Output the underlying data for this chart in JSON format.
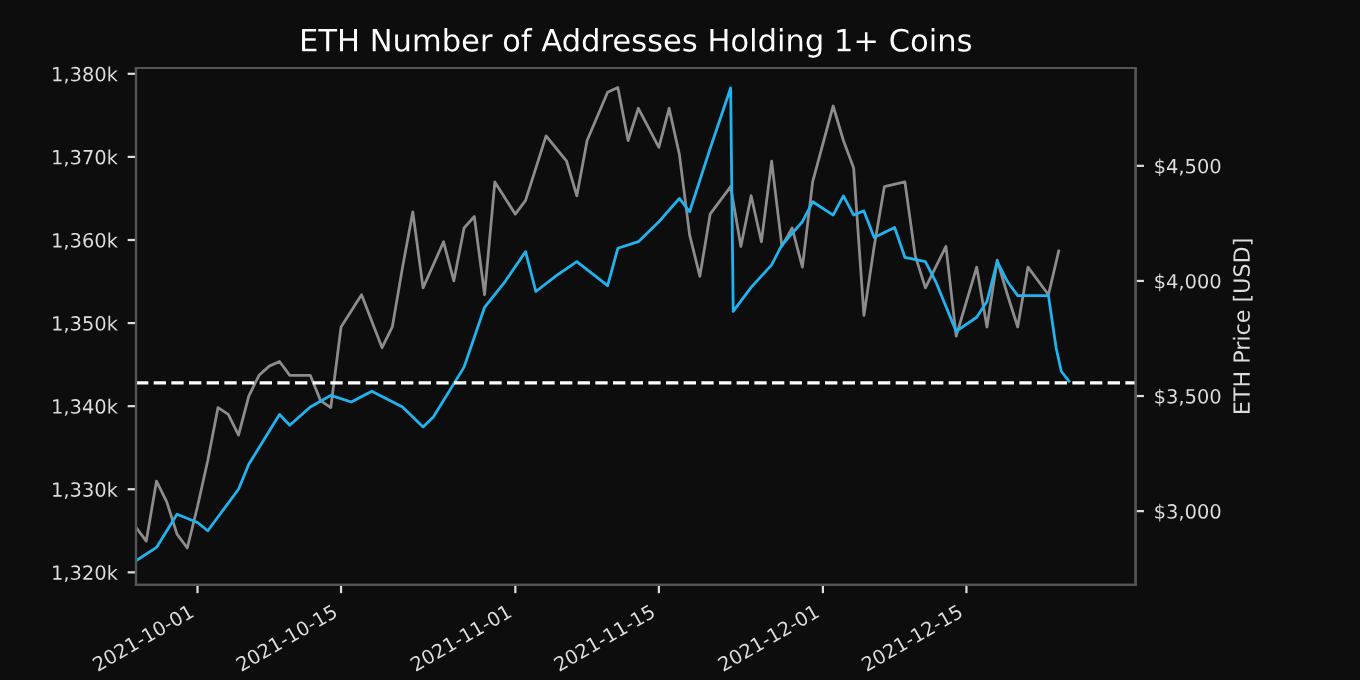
{
  "chart_data": {
    "type": "line",
    "title": "ETH Number of Addresses Holding 1+ Coins",
    "y2label": "ETH Price [USD]",
    "xlim": [
      "2021-09-25T00:00",
      "2021-12-31T12:00"
    ],
    "xticks": [
      "2021-10-01",
      "2021-10-15",
      "2021-11-01",
      "2021-11-15",
      "2021-12-01",
      "2021-12-15"
    ],
    "ylim": [
      1318500,
      1380700
    ],
    "yticks": [
      {
        "value": 1320000,
        "label": "1,320k"
      },
      {
        "value": 1330000,
        "label": "1,330k"
      },
      {
        "value": 1340000,
        "label": "1,340k"
      },
      {
        "value": 1350000,
        "label": "1,350k"
      },
      {
        "value": 1360000,
        "label": "1,360k"
      },
      {
        "value": 1370000,
        "label": "1,370k"
      },
      {
        "value": 1380000,
        "label": "1,380k"
      }
    ],
    "y2lim": [
      2680,
      4925
    ],
    "y2ticks": [
      {
        "value": 3000,
        "label": "$3,000"
      },
      {
        "value": 3500,
        "label": "$3,500"
      },
      {
        "value": 4000,
        "label": "$4,000"
      },
      {
        "value": 4500,
        "label": "$4,500"
      }
    ],
    "grid": false,
    "ref_lines": [
      {
        "axis": "y",
        "value": 1342800,
        "color": "#ffffff",
        "line_style": "dashed"
      }
    ],
    "series": [
      {
        "axis": "y2",
        "color": "#8c8c8c",
        "x": [
          "2021-09-25",
          "2021-09-26",
          "2021-09-27",
          "2021-09-28",
          "2021-09-29",
          "2021-09-30",
          "2021-10-01",
          "2021-10-02",
          "2021-10-03",
          "2021-10-04",
          "2021-10-05",
          "2021-10-06",
          "2021-10-07",
          "2021-10-08",
          "2021-10-09",
          "2021-10-10",
          "2021-10-12",
          "2021-10-13",
          "2021-10-14",
          "2021-10-15",
          "2021-10-17",
          "2021-10-19",
          "2021-10-20",
          "2021-10-21",
          "2021-10-22",
          "2021-10-23",
          "2021-10-25",
          "2021-10-26",
          "2021-10-27",
          "2021-10-28",
          "2021-10-29",
          "2021-10-30",
          "2021-11-01",
          "2021-11-02",
          "2021-11-04",
          "2021-11-06",
          "2021-11-07",
          "2021-11-08",
          "2021-11-10",
          "2021-11-11",
          "2021-11-12",
          "2021-11-13",
          "2021-11-15",
          "2021-11-16",
          "2021-11-17",
          "2021-11-18",
          "2021-11-19",
          "2021-11-20",
          "2021-11-22",
          "2021-11-23",
          "2021-11-24",
          "2021-11-25",
          "2021-11-26",
          "2021-11-27",
          "2021-11-28",
          "2021-11-29",
          "2021-11-30",
          "2021-12-02",
          "2021-12-03",
          "2021-12-04",
          "2021-12-05",
          "2021-12-06",
          "2021-12-07",
          "2021-12-09",
          "2021-12-10",
          "2021-12-11",
          "2021-12-13",
          "2021-12-14",
          "2021-12-16",
          "2021-12-17",
          "2021-12-18",
          "2021-12-19",
          "2021-12-20",
          "2021-12-21",
          "2021-12-23",
          "2021-12-24"
        ],
        "values": [
          2930,
          2870,
          3130,
          3040,
          2900,
          2840,
          3020,
          3220,
          3450,
          3420,
          3330,
          3500,
          3590,
          3630,
          3650,
          3590,
          3590,
          3480,
          3450,
          3800,
          3940,
          3710,
          3800,
          4060,
          4300,
          3970,
          4170,
          4000,
          4230,
          4280,
          3940,
          4430,
          4290,
          4350,
          4630,
          4520,
          4370,
          4610,
          4820,
          4840,
          4610,
          4750,
          4580,
          4750,
          4550,
          4200,
          4020,
          4290,
          4410,
          4150,
          4370,
          4170,
          4520,
          4150,
          4230,
          4060,
          4430,
          4760,
          4610,
          4490,
          3850,
          4150,
          4410,
          4430,
          4110,
          3970,
          4150,
          3760,
          4060,
          3800,
          4090,
          3940,
          3800,
          4060,
          3940,
          4130
        ]
      },
      {
        "color": "#1fb4f0",
        "x": [
          "2021-09-25",
          "2021-09-27",
          "2021-09-29",
          "2021-10-01",
          "2021-10-02",
          "2021-10-05",
          "2021-10-06",
          "2021-10-08",
          "2021-10-09",
          "2021-10-10",
          "2021-10-12",
          "2021-10-14",
          "2021-10-16",
          "2021-10-18",
          "2021-10-21",
          "2021-10-23",
          "2021-10-24",
          "2021-10-27",
          "2021-10-29",
          "2021-10-31",
          "2021-11-02",
          "2021-11-03",
          "2021-11-05",
          "2021-11-07",
          "2021-11-10",
          "2021-11-11",
          "2021-11-13",
          "2021-11-15",
          "2021-11-17",
          "2021-11-18",
          "2021-11-20",
          "2021-11-22T00:00",
          "2021-11-22T06:00",
          "2021-11-24",
          "2021-11-26",
          "2021-11-27",
          "2021-11-29",
          "2021-11-30",
          "2021-12-02",
          "2021-12-03",
          "2021-12-04",
          "2021-12-05",
          "2021-12-06",
          "2021-12-08",
          "2021-12-09",
          "2021-12-11",
          "2021-12-12",
          "2021-12-14",
          "2021-12-16",
          "2021-12-17",
          "2021-12-18",
          "2021-12-19",
          "2021-12-20",
          "2021-12-23T00:00",
          "2021-12-23T18:00",
          "2021-12-24T06:00",
          "2021-12-25"
        ],
        "values": [
          1321400,
          1323000,
          1327000,
          1326000,
          1325000,
          1330000,
          1333000,
          1337000,
          1339000,
          1337700,
          1339900,
          1341300,
          1340500,
          1341800,
          1339900,
          1337500,
          1338700,
          1344700,
          1351900,
          1355000,
          1358600,
          1353800,
          1355700,
          1357400,
          1354500,
          1359000,
          1359800,
          1362200,
          1365000,
          1363400,
          1371000,
          1378300,
          1351400,
          1354300,
          1357000,
          1359400,
          1362200,
          1364600,
          1363000,
          1365300,
          1363000,
          1363500,
          1360300,
          1361500,
          1357900,
          1357400,
          1355000,
          1349000,
          1350700,
          1352600,
          1357400,
          1355000,
          1353300,
          1353300,
          1347000,
          1344200,
          1343000
        ]
      }
    ]
  }
}
